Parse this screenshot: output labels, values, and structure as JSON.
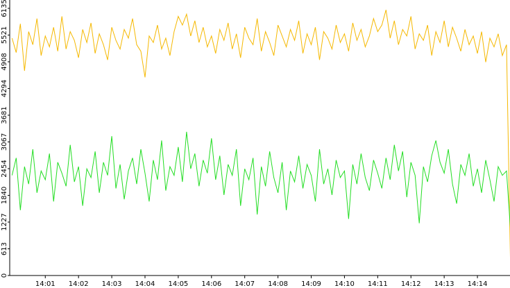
{
  "chart_data": {
    "type": "line",
    "x": [
      840,
      840.125,
      840.25,
      840.375,
      840.5,
      840.625,
      840.75,
      840.875,
      841,
      841.125,
      841.25,
      841.375,
      841.5,
      841.625,
      841.75,
      841.875,
      842,
      842.125,
      842.25,
      842.375,
      842.5,
      842.625,
      842.75,
      842.875,
      843,
      843.125,
      843.25,
      843.375,
      843.5,
      843.625,
      843.75,
      843.875,
      844,
      844.125,
      844.25,
      844.375,
      844.5,
      844.625,
      844.75,
      844.875,
      845,
      845.125,
      845.25,
      845.375,
      845.5,
      845.625,
      845.75,
      845.875,
      846,
      846.125,
      846.25,
      846.375,
      846.5,
      846.625,
      846.75,
      846.875,
      847,
      847.125,
      847.25,
      847.375,
      847.5,
      847.625,
      847.75,
      847.875,
      848,
      848.125,
      848.25,
      848.375,
      848.5,
      848.625,
      848.75,
      848.875,
      849,
      849.125,
      849.25,
      849.375,
      849.5,
      849.625,
      849.75,
      849.875,
      850,
      850.125,
      850.25,
      850.375,
      850.5,
      850.625,
      850.75,
      850.875,
      851,
      851.125,
      851.25,
      851.375,
      851.5,
      851.625,
      851.75,
      851.875,
      852,
      852.125,
      852.25,
      852.375,
      852.5,
      852.625,
      852.75,
      852.875,
      853,
      853.125,
      853.25,
      853.375,
      853.5,
      853.625,
      853.75,
      853.875,
      854,
      854.125,
      854.25,
      854.375,
      854.5,
      854.625,
      854.75,
      854.875,
      855
    ],
    "series": [
      {
        "color": "#f5b800",
        "values": [
          5450,
          5120,
          5780,
          4700,
          5600,
          5300,
          5900,
          5050,
          5500,
          5250,
          5700,
          5150,
          5950,
          5200,
          5600,
          5400,
          5000,
          5650,
          5350,
          5800,
          5100,
          5550,
          5300,
          4950,
          5700,
          5400,
          5200,
          5650,
          5450,
          5900,
          5300,
          5150,
          4550,
          5500,
          5350,
          5750,
          5200,
          5450,
          5050,
          5600,
          5950,
          5750,
          6000,
          5500,
          5850,
          5350,
          5700,
          5250,
          5500,
          5100,
          5650,
          5400,
          5800,
          5200,
          5550,
          5000,
          5700,
          5450,
          5300,
          5900,
          5150,
          5600,
          5350,
          5050,
          5750,
          5500,
          5250,
          5650,
          5400,
          5850,
          5100,
          5550,
          5300,
          5700,
          4950,
          5600,
          5450,
          5200,
          5750,
          5350,
          5550,
          5150,
          5800,
          5400,
          5650,
          5250,
          5500,
          5900,
          5600,
          5750,
          6100,
          5450,
          5850,
          5300,
          5650,
          5500,
          5950,
          5200,
          5550,
          5400,
          5750,
          5050,
          5600,
          5350,
          5850,
          5250,
          5700,
          5450,
          5150,
          5650,
          5300,
          5500,
          5100,
          5600,
          4900,
          5450,
          5250,
          5550,
          5050,
          5300,
          0
        ]
      },
      {
        "color": "#22dd22",
        "values": [
          2300,
          2700,
          1500,
          2500,
          2100,
          2900,
          1900,
          2400,
          2200,
          2800,
          1700,
          2600,
          2350,
          2050,
          3000,
          2150,
          2500,
          1600,
          2450,
          2250,
          2850,
          1900,
          2600,
          2300,
          3200,
          2000,
          2550,
          1750,
          2400,
          2700,
          2100,
          2900,
          2350,
          1700,
          2650,
          2200,
          3100,
          1950,
          2500,
          2300,
          2950,
          2150,
          3300,
          2450,
          2800,
          2050,
          2650,
          2350,
          3150,
          2200,
          2750,
          1850,
          2550,
          2300,
          2900,
          1600,
          2450,
          2200,
          2700,
          1400,
          2500,
          2050,
          2850,
          2250,
          1900,
          2600,
          1500,
          2400,
          2150,
          2750,
          2000,
          2550,
          2300,
          1700,
          2900,
          2100,
          2450,
          1850,
          2650,
          2250,
          2400,
          1300,
          2550,
          2100,
          2800,
          2250,
          1950,
          2650,
          2350,
          2000,
          2700,
          2200,
          3000,
          2400,
          2850,
          1800,
          2600,
          2300,
          1200,
          2500,
          2150,
          2750,
          3100,
          2600,
          2350,
          2900,
          2100,
          1650,
          2550,
          2300,
          2800,
          2050,
          2450,
          1900,
          2650,
          2200,
          1700,
          2500,
          2300,
          2400,
          1000
        ]
      }
    ],
    "xlim": [
      839.93,
      854.98
    ],
    "xticks": [
      {
        "value": 841,
        "label": "14:01"
      },
      {
        "value": 842,
        "label": "14:02"
      },
      {
        "value": 843,
        "label": "14:03"
      },
      {
        "value": 844,
        "label": "14:04"
      },
      {
        "value": 845,
        "label": "14:05"
      },
      {
        "value": 846,
        "label": "14:06"
      },
      {
        "value": 847,
        "label": "14:07"
      },
      {
        "value": 848,
        "label": "14:08"
      },
      {
        "value": 849,
        "label": "14:09"
      },
      {
        "value": 850,
        "label": "14:10"
      },
      {
        "value": 851,
        "label": "14:11"
      },
      {
        "value": 852,
        "label": "14:12"
      },
      {
        "value": 853,
        "label": "14:13"
      },
      {
        "value": 854,
        "label": "14:14"
      }
    ],
    "ylim": [
      0,
      6135
    ],
    "yticks": [
      0,
      613,
      1227,
      1840,
      2454,
      3067,
      3681,
      4294,
      4908,
      5521,
      6135
    ]
  }
}
